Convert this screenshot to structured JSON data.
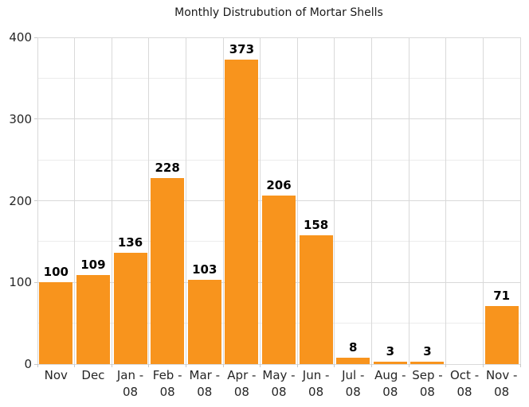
{
  "chart_data": {
    "type": "bar",
    "title": "Monthly Distrubution of Mortar Shells",
    "categories": [
      "Nov",
      "Dec",
      "Jan - 08",
      "Feb - 08",
      "Mar - 08",
      "Apr - 08",
      "May - 08",
      "Jun - 08",
      "Jul - 08",
      "Aug - 08",
      "Sep - 08",
      "Oct - 08",
      "Nov - 08"
    ],
    "tick_labels": [
      [
        "Nov"
      ],
      [
        "Dec"
      ],
      [
        "Jan -",
        "08"
      ],
      [
        "Feb -",
        "08"
      ],
      [
        "Mar -",
        "08"
      ],
      [
        "Apr -",
        "08"
      ],
      [
        "May -",
        "08"
      ],
      [
        "Jun -",
        "08"
      ],
      [
        "Jul -",
        "08"
      ],
      [
        "Aug -",
        "08"
      ],
      [
        "Sep -",
        "08"
      ],
      [
        "Oct -",
        "08"
      ],
      [
        "Nov -",
        "08"
      ]
    ],
    "values": [
      100,
      109,
      136,
      228,
      103,
      373,
      206,
      158,
      8,
      3,
      3,
      0,
      71
    ],
    "bar_labels": [
      "100",
      "109",
      "136",
      "228",
      "103",
      "373",
      "206",
      "158",
      "8",
      "3",
      "3",
      "",
      "71"
    ],
    "xlabel": "",
    "ylabel": "",
    "ylim": [
      0,
      400
    ],
    "yticks": [
      0,
      100,
      200,
      300,
      400
    ],
    "ytick_labels": [
      "0",
      "100",
      "200",
      "300",
      "400"
    ],
    "minor_grid_step": 50,
    "grid": true,
    "legend_position": "none",
    "colors": {
      "bar": "#F8941D",
      "major_grid": "#D9D9D9",
      "minor_grid": "#ECECEC",
      "tick": "#C9C9C9",
      "axis_text": "#262626",
      "value_label": "#000000",
      "title_text": "#1A1A1A",
      "background": "#FFFFFF"
    }
  }
}
